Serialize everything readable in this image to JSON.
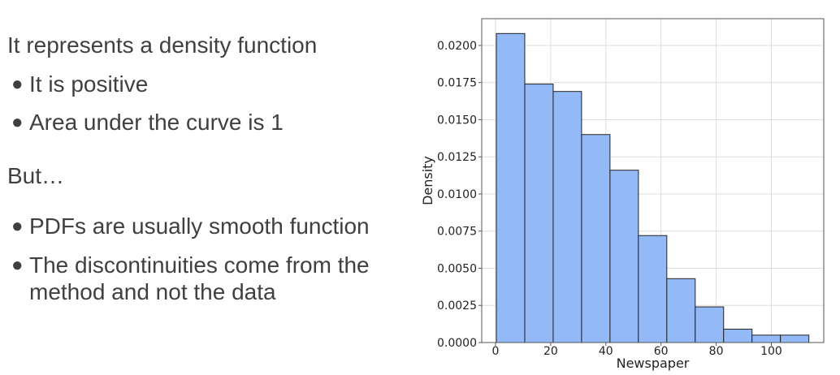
{
  "slide": {
    "heading1": "It represents a density function",
    "bullets1": [
      "It is positive",
      "Area under the curve is 1"
    ],
    "heading2": "But…",
    "bullets2": [
      "PDFs are usually smooth function",
      "The discontinuities come from the method and not the data"
    ],
    "text_color": "#404040"
  },
  "chart_data": {
    "type": "bar",
    "subtype": "histogram",
    "xlabel": "Newspaper",
    "ylabel": "Density",
    "xlim": [
      -5,
      119
    ],
    "ylim": [
      0,
      0.0218
    ],
    "x_ticks": [
      0,
      20,
      40,
      60,
      80,
      100
    ],
    "y_ticks": [
      0.0,
      0.0025,
      0.005,
      0.0075,
      0.01,
      0.0125,
      0.015,
      0.0175,
      0.02
    ],
    "y_tick_labels": [
      "0.0000",
      "0.0025",
      "0.0050",
      "0.0075",
      "0.0100",
      "0.0125",
      "0.0150",
      "0.0175",
      "0.0200"
    ],
    "bin_edges": [
      0.3,
      10.6,
      20.9,
      31.2,
      41.5,
      51.8,
      62.1,
      72.4,
      82.7,
      93.0,
      103.3,
      113.6
    ],
    "values": [
      0.0208,
      0.0174,
      0.0169,
      0.014,
      0.0116,
      0.0072,
      0.0043,
      0.0024,
      0.0009,
      0.0005,
      0.0005
    ],
    "grid": true,
    "bar_color": "#94b9f7",
    "edge_color": "#222222"
  }
}
